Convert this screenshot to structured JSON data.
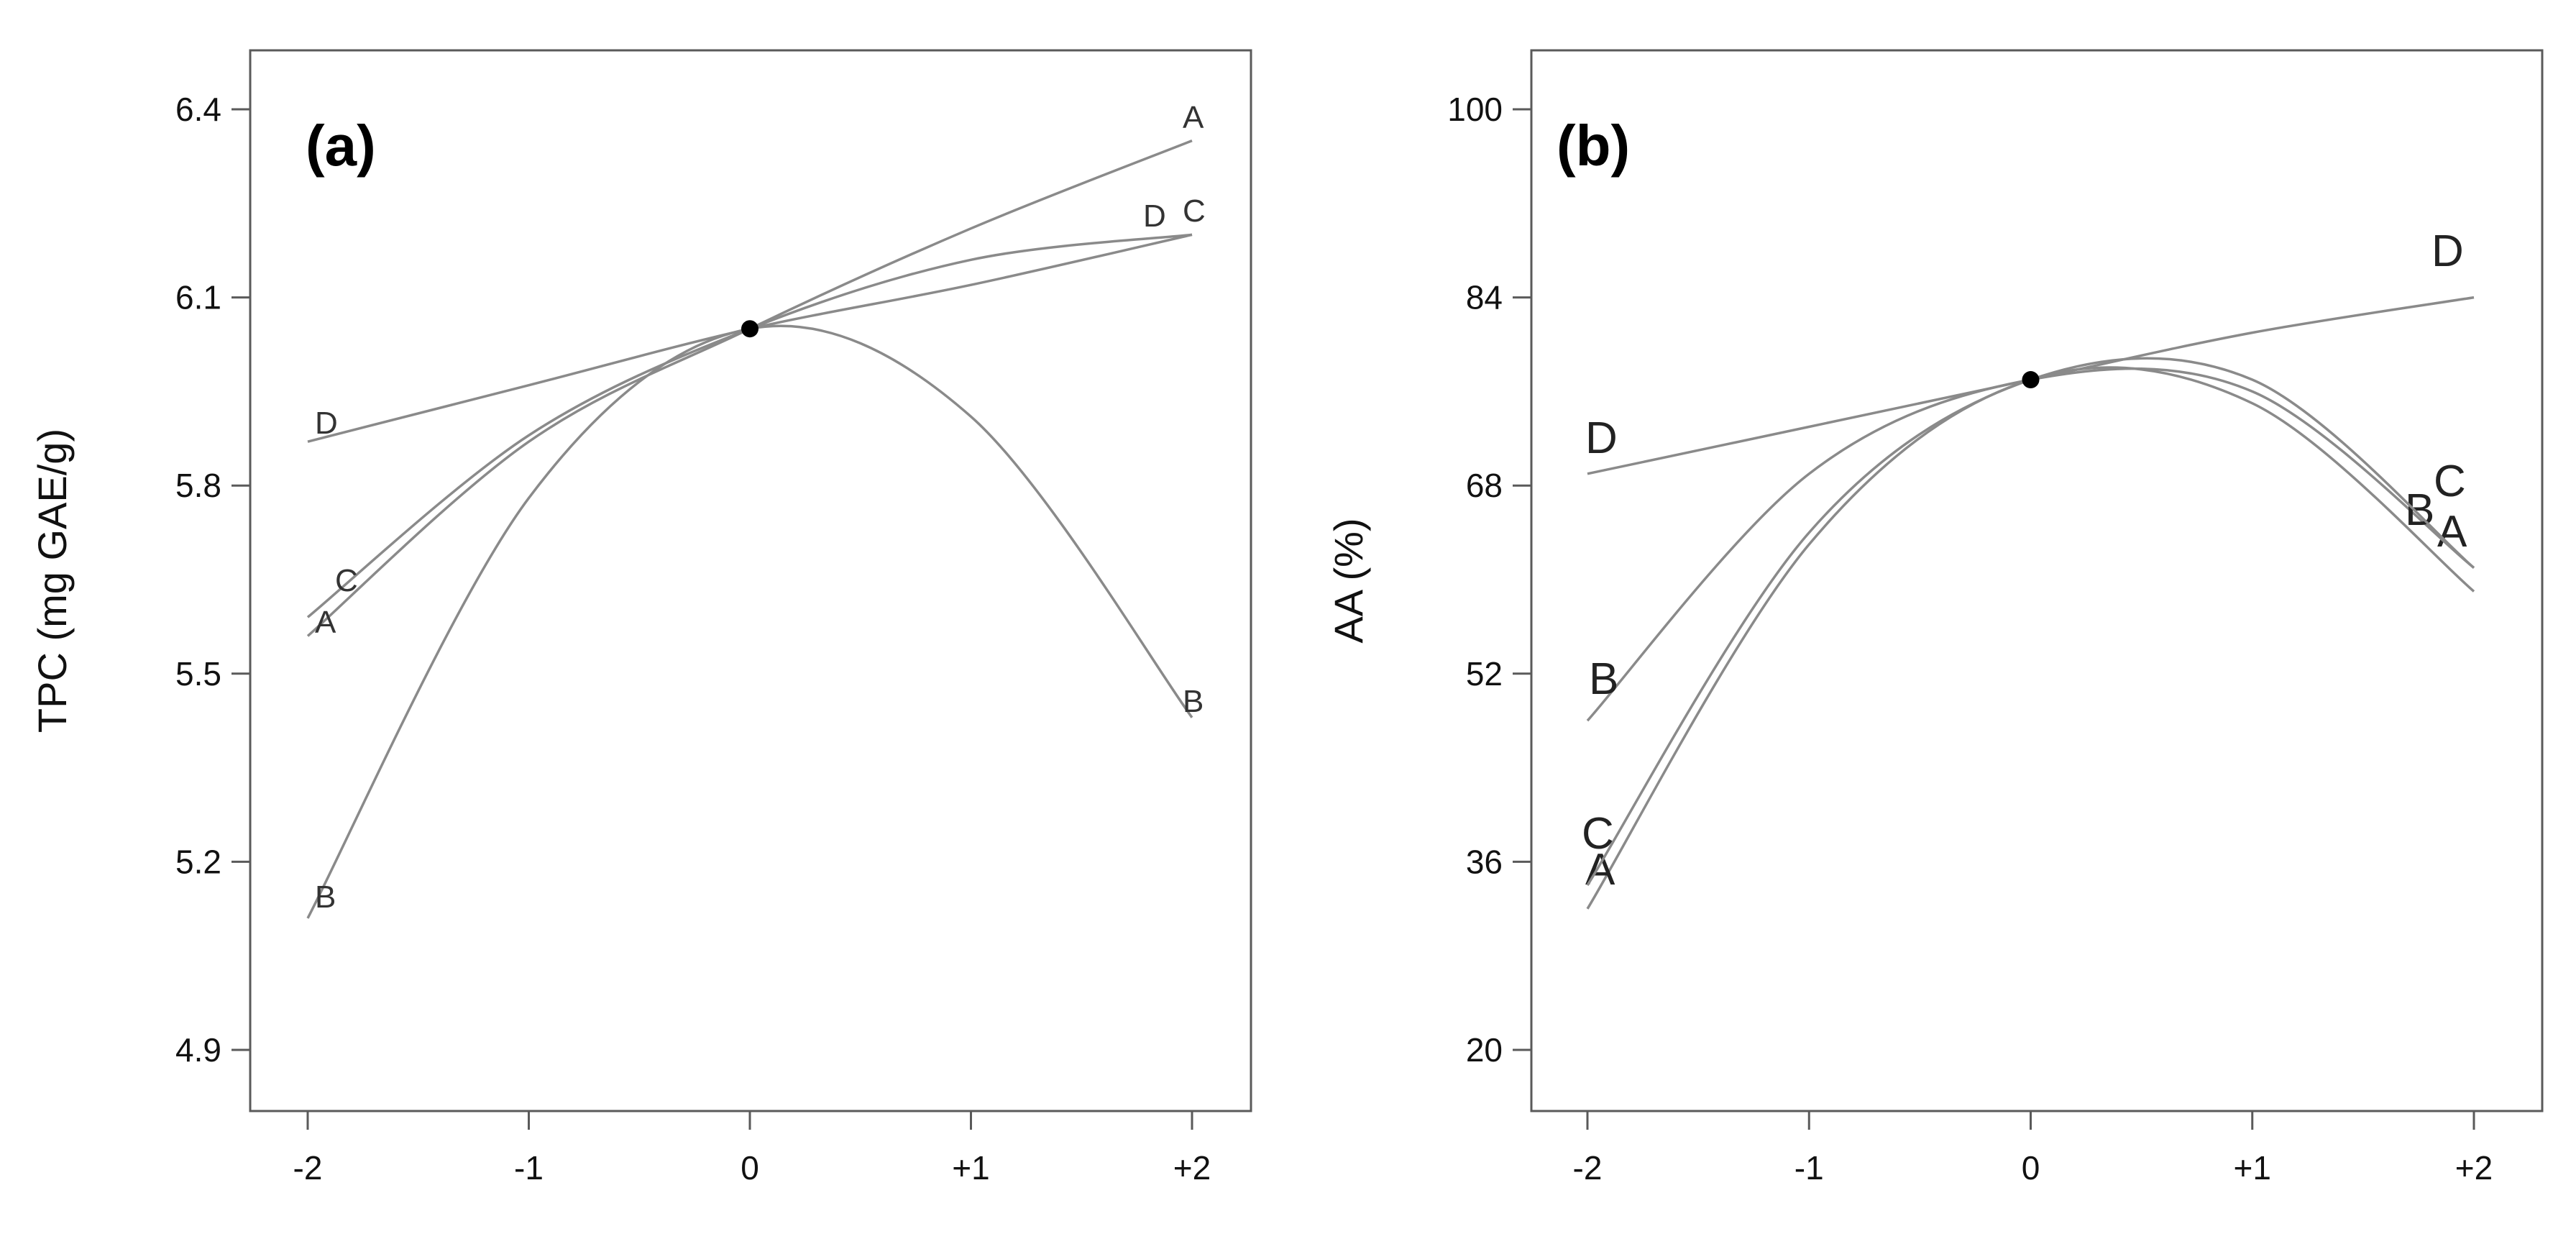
{
  "chart_data": [
    {
      "type": "line",
      "panel_label": "(a)",
      "ylabel": "TPC (mg GAE/g)",
      "xlabel": "",
      "x_tick_labels": [
        "-2",
        "-1",
        "0",
        "+1",
        "+2"
      ],
      "y_tick_labels": [
        "4.9",
        "5.2",
        "5.5",
        "5.8",
        "6.1",
        "6.4"
      ],
      "x": [
        -2,
        -1,
        0,
        1,
        2
      ],
      "ylim": [
        4.81,
        6.49
      ],
      "center_point": {
        "x": 0,
        "y": 6.05
      },
      "series": [
        {
          "name": "A",
          "values": [
            5.56,
            5.87,
            6.05,
            6.21,
            6.35
          ]
        },
        {
          "name": "B",
          "values": [
            5.11,
            5.78,
            6.05,
            5.91,
            5.43
          ]
        },
        {
          "name": "C",
          "values": [
            5.59,
            5.88,
            6.05,
            6.16,
            6.2
          ]
        },
        {
          "name": "D",
          "values": [
            5.87,
            5.96,
            6.05,
            6.12,
            6.2
          ]
        }
      ]
    },
    {
      "type": "line",
      "panel_label": "(b)",
      "ylabel": "AA (%)",
      "xlabel": "",
      "x_tick_labels": [
        "-2",
        "-1",
        "0",
        "+1",
        "+2"
      ],
      "y_tick_labels": [
        "20",
        "36",
        "52",
        "68",
        "84",
        "100"
      ],
      "x": [
        -2,
        -1,
        0,
        1,
        2
      ],
      "ylim": [
        15,
        105
      ],
      "center_point": {
        "x": 0,
        "y": 77
      },
      "series": [
        {
          "name": "A",
          "values": [
            32,
            63,
            77,
            75,
            59
          ]
        },
        {
          "name": "B",
          "values": [
            48,
            69,
            77,
            76,
            61
          ]
        },
        {
          "name": "C",
          "values": [
            34,
            64,
            77,
            77,
            61
          ]
        },
        {
          "name": "D",
          "values": [
            69,
            73,
            77,
            81,
            84
          ]
        }
      ]
    }
  ]
}
